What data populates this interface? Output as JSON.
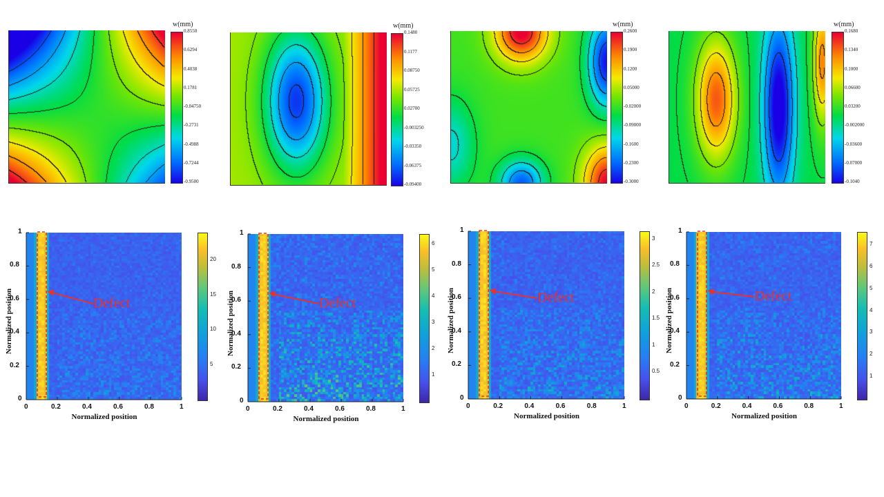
{
  "chart_data": [
    {
      "type": "heatmap",
      "subtype": "contour",
      "colorbar_title": "w(mm)",
      "colorbar_ticks": [
        "0.8550",
        "0.6294",
        "0.4038",
        "0.1781",
        "-0.04750",
        "-0.2731",
        "-0.4988",
        "-0.7244",
        "-0.9500"
      ],
      "colorbar_range": [
        -0.95,
        0.855
      ],
      "pattern": "saddle"
    },
    {
      "type": "heatmap",
      "subtype": "contour",
      "colorbar_title": "w(mm)",
      "colorbar_ticks": [
        "0.1480",
        "0.1177",
        "0.08750",
        "0.05725",
        "0.02700",
        "-0.003250",
        "-0.03350",
        "-0.06375",
        "-0.09400"
      ],
      "colorbar_range": [
        -0.094,
        0.148
      ],
      "pattern": "single-lobe"
    },
    {
      "type": "heatmap",
      "subtype": "contour",
      "colorbar_title": "w(mm)",
      "colorbar_ticks": [
        "0.2600",
        "0.1900",
        "0.1200",
        "0.05000",
        "-0.02000",
        "-0.09000",
        "-0.1600",
        "-0.2300",
        "-0.3000"
      ],
      "colorbar_range": [
        -0.3,
        0.26
      ],
      "pattern": "multi-lobe"
    },
    {
      "type": "heatmap",
      "subtype": "contour",
      "colorbar_title": "w(mm)",
      "colorbar_ticks": [
        "0.1680",
        "0.1340",
        "0.1000",
        "0.06600",
        "0.03200",
        "-0.002000",
        "-0.03600",
        "-0.07000",
        "-0.1040"
      ],
      "colorbar_range": [
        -0.104,
        0.168
      ],
      "pattern": "multi-band"
    },
    {
      "type": "heatmap",
      "xlabel": "Normalized position",
      "ylabel": "Normalized position",
      "xticks": [
        "0",
        "0.2",
        "0.4",
        "0.6",
        "0.8",
        "1"
      ],
      "yticks": [
        "0",
        "0.2",
        "0.4",
        "0.6",
        "0.8",
        "1"
      ],
      "xlim": [
        0,
        1
      ],
      "ylim": [
        0,
        1
      ],
      "colorbar_ticks": [
        "5",
        "10",
        "15",
        "20"
      ],
      "colorbar_range": [
        0,
        24
      ],
      "defect_x": 0.1,
      "annotation": "Defect"
    },
    {
      "type": "heatmap",
      "xlabel": "Normalized position",
      "ylabel": "Normalized position",
      "xticks": [
        "0",
        "0.2",
        "0.4",
        "0.6",
        "0.8",
        "1"
      ],
      "yticks": [
        "0",
        "0.2",
        "0.4",
        "0.6",
        "0.8",
        "1"
      ],
      "xlim": [
        0,
        1
      ],
      "ylim": [
        0,
        1
      ],
      "colorbar_ticks": [
        "1",
        "2",
        "3",
        "4",
        "5",
        "6"
      ],
      "colorbar_range": [
        0,
        6.4
      ],
      "defect_x": 0.1,
      "annotation": "Defect"
    },
    {
      "type": "heatmap",
      "xlabel": "Normalized position",
      "ylabel": "Normalized position",
      "xticks": [
        "0",
        "0.2",
        "0.4",
        "0.6",
        "0.8",
        "1"
      ],
      "yticks": [
        "0",
        "0.2",
        "0.4",
        "0.6",
        "0.8",
        "1"
      ],
      "xlim": [
        0,
        1
      ],
      "ylim": [
        0,
        1
      ],
      "colorbar_ticks": [
        "0.5",
        "1",
        "1.5",
        "2",
        "2.5",
        "3"
      ],
      "colorbar_range": [
        0,
        3.15
      ],
      "defect_x": 0.1,
      "annotation": "Defect"
    },
    {
      "type": "heatmap",
      "xlabel": "Normalized position",
      "ylabel": "Normalized position",
      "xticks": [
        "0",
        "0.2",
        "0.4",
        "0.6",
        "0.8",
        "1"
      ],
      "yticks": [
        "0",
        "0.2",
        "0.4",
        "0.6",
        "0.8",
        "1"
      ],
      "xlim": [
        0,
        1
      ],
      "ylim": [
        0,
        1
      ],
      "colorbar_ticks": [
        "1",
        "2",
        "3",
        "4",
        "5",
        "6",
        "7"
      ],
      "colorbar_range": [
        0,
        7.6
      ],
      "defect_x": 0.1,
      "annotation": "Defect"
    }
  ]
}
